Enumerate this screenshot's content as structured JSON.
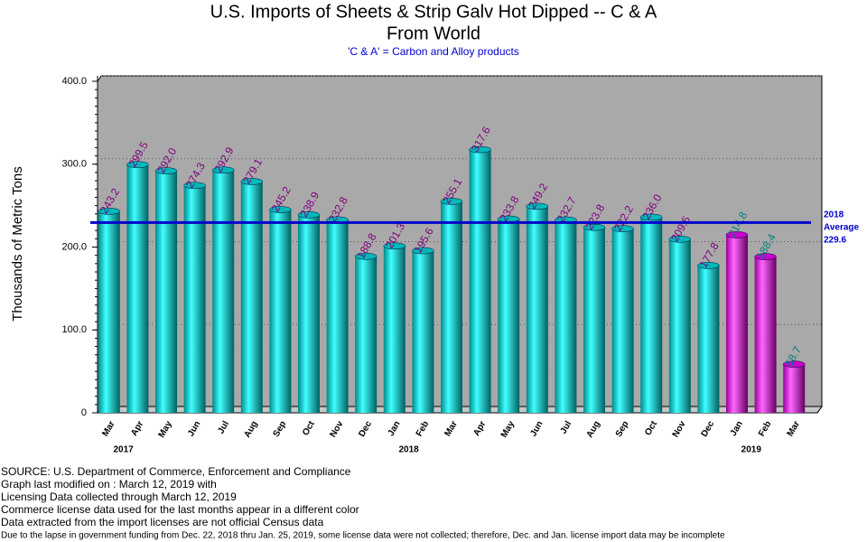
{
  "chart_data": {
    "type": "bar",
    "title": [
      "U.S. Imports of Sheets & Strip Galv Hot Dipped -- C & A",
      "From World"
    ],
    "subtitle": "'C & A' = Carbon and Alloy products",
    "y_label": "Thousands of Metric Tons",
    "categories": [
      "Mar",
      "Apr",
      "May",
      "Jun",
      "Jul",
      "Aug",
      "Sep",
      "Oct",
      "Nov",
      "Dec",
      "Jan",
      "Feb",
      "Mar",
      "Apr",
      "May",
      "Jun",
      "Jul",
      "Aug",
      "Sep",
      "Oct",
      "Nov",
      "Dec",
      "Jan",
      "Feb",
      "Mar"
    ],
    "years": [
      "2017",
      "2018",
      "2019"
    ],
    "values": [
      243.2,
      299.5,
      292.0,
      274.3,
      292.9,
      279.1,
      245.2,
      238.9,
      232.8,
      188.8,
      201.3,
      195.6,
      255.1,
      317.6,
      233.8,
      249.2,
      232.7,
      223.8,
      222.2,
      236.0,
      209.5,
      177.8,
      214.8,
      188.4,
      58.7
    ],
    "value_labels": [
      "243.2",
      "299.5",
      "292.0",
      "274.3",
      "292.9",
      "279.1",
      "245.2",
      "238.9",
      "232.8",
      "188.8",
      "201.3",
      "195.6",
      "255.1",
      "317.6",
      "233.8",
      "249.2",
      "232.7",
      "223.8",
      "222.2",
      "236.0",
      "209.5",
      "177.8",
      "214.8",
      "188.4",
      "58.7"
    ],
    "colors": [
      "#00b8b8",
      "#00b8b8",
      "#00b8b8",
      "#00b8b8",
      "#00b8b8",
      "#00b8b8",
      "#00b8b8",
      "#00b8b8",
      "#00b8b8",
      "#00b8b8",
      "#00b8b8",
      "#00b8b8",
      "#00b8b8",
      "#00b8b8",
      "#00b8b8",
      "#00b8b8",
      "#00b8b8",
      "#00b8b8",
      "#00b8b8",
      "#00b8b8",
      "#00b8b8",
      "#00b8b8",
      "#cc00cc",
      "#cc00cc",
      "#cc00cc"
    ],
    "label_colors": [
      "#800080",
      "#800080",
      "#800080",
      "#800080",
      "#800080",
      "#800080",
      "#800080",
      "#800080",
      "#800080",
      "#800080",
      "#800080",
      "#800080",
      "#800080",
      "#800080",
      "#800080",
      "#800080",
      "#800080",
      "#800080",
      "#800080",
      "#800080",
      "#800080",
      "#800080",
      "#008080",
      "#008080",
      "#008080"
    ],
    "ylim": [
      0,
      400
    ],
    "yticks": [
      0,
      {
        "value": 100,
        "label": "100.0"
      },
      {
        "value": 200,
        "label": "200.0"
      },
      {
        "value": 300,
        "label": "300.0"
      },
      {
        "value": 400,
        "label": "400.0"
      }
    ],
    "grid": true,
    "average": {
      "label_lines": [
        "2018",
        "Average"
      ],
      "value": 229.6,
      "color": "#0000cc"
    },
    "footnotes": [
      "SOURCE: U.S. Department of Commerce, Enforcement and Compliance",
      "Graph last modified on : March 12, 2019     with",
      "Licensing Data collected through March 12, 2019",
      "Commerce license data used for the last months appear in a different color",
      "Data extracted from the import licenses are not official Census data",
      "Due to the lapse in government funding from Dec. 22, 2018 thru Jan. 25, 2019, some license data were not collected; therefore, Dec. and Jan. license import data may be incomplete"
    ]
  }
}
